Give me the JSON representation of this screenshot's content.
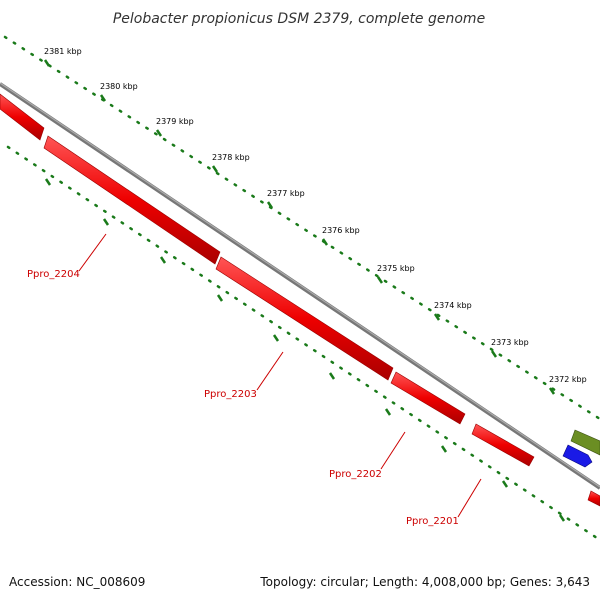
{
  "title": "Pelobacter propionicus DSM 2379, complete genome",
  "footer": {
    "accession": "Accession: NC_008609",
    "summary": "Topology: circular; Length: 4,008,000 bp; Genes: 3,643"
  },
  "colors": {
    "gene": "#ee0000",
    "label": "#cc0000",
    "backbone": "#888888",
    "tick": "#1a7a1a",
    "blue_feature": "#1a1ae6",
    "green_feature": "#6b8e23"
  },
  "ruler": {
    "ticks": [
      {
        "label": "2381 kbp"
      },
      {
        "label": "2380 kbp"
      },
      {
        "label": "2379 kbp"
      },
      {
        "label": "2378 kbp"
      },
      {
        "label": "2377 kbp"
      },
      {
        "label": "2376 kbp"
      },
      {
        "label": "2375 kbp"
      },
      {
        "label": "2374 kbp"
      },
      {
        "label": "2373 kbp"
      },
      {
        "label": "2372 kbp"
      }
    ]
  },
  "genes": [
    {
      "name": "Ppro_2204"
    },
    {
      "name": "Ppro_2203"
    },
    {
      "name": "Ppro_2202"
    },
    {
      "name": "Ppro_2201"
    }
  ]
}
